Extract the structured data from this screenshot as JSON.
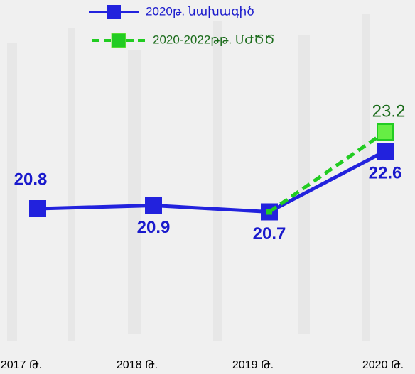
{
  "chart_data": {
    "type": "line",
    "categories": [
      "2017 Թ.",
      "2018 Թ.",
      "2019 Թ.",
      "2020 Թ."
    ],
    "series": [
      {
        "name": "2020թ. նախագիծ",
        "color": "#2222dd",
        "label_color": "#1a1acc",
        "values": [
          20.8,
          20.9,
          20.7,
          22.6
        ]
      },
      {
        "name": "2020-2022թթ. ՄԺԾԾ",
        "color": "#22cc22",
        "label_color": "#1a6b1a",
        "dashed": true,
        "values": [
          null,
          null,
          20.7,
          23.2
        ]
      }
    ],
    "ylim": [
      20,
      24
    ],
    "grid": false,
    "legend": "top"
  }
}
